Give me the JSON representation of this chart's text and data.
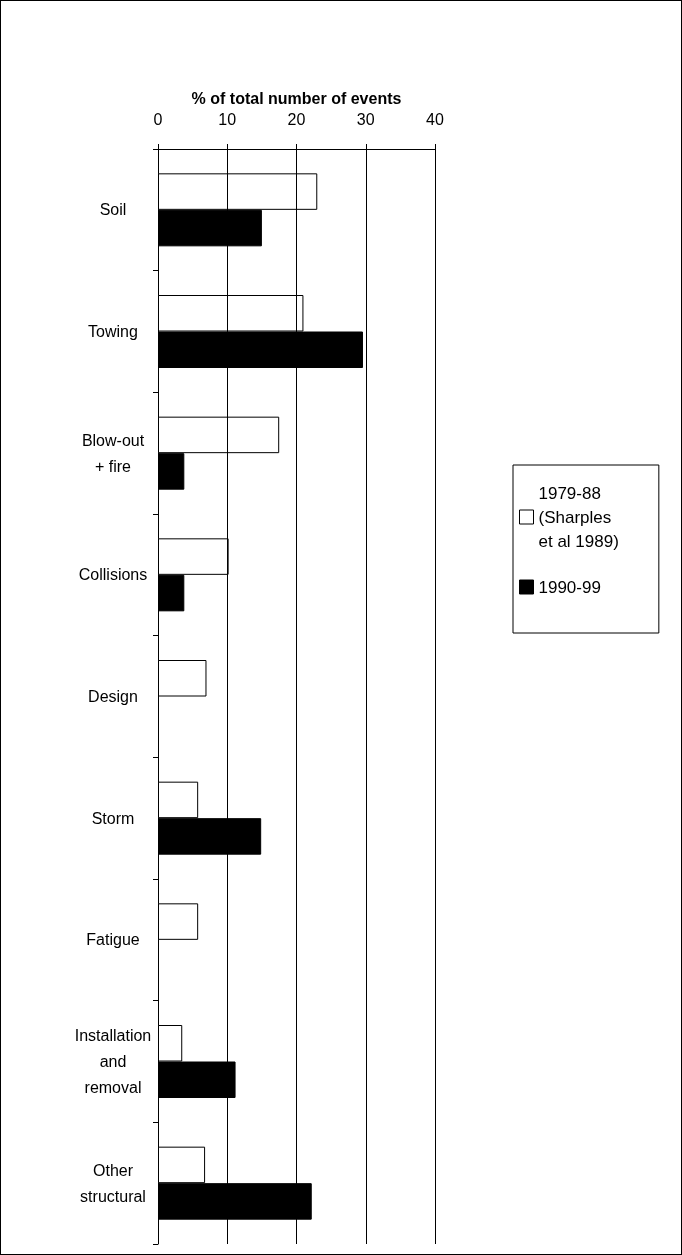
{
  "chart_data": {
    "type": "bar",
    "orientation": "horizontal",
    "xlabel": "% of total number of events",
    "categories": [
      "Soil",
      "Towing",
      "Blow-out + fire",
      "Collisions",
      "Design",
      "Storm",
      "Fatigue",
      "Installation and removal",
      "Other structural"
    ],
    "series": [
      {
        "name": "1979-88 (Sharples et al 1989)",
        "color": "#ffffff",
        "values": [
          23,
          21,
          17.5,
          10.2,
          7,
          5.8,
          5.8,
          3.5,
          6.8
        ]
      },
      {
        "name": "1990-99",
        "color": "#000000",
        "values": [
          15,
          29.6,
          3.8,
          3.8,
          null,
          14.9,
          null,
          11.2,
          22.2
        ]
      }
    ],
    "xlim": [
      0,
      40
    ],
    "xticks": [
      0,
      10,
      20,
      30,
      40
    ],
    "grid": "x",
    "legend": "right"
  }
}
